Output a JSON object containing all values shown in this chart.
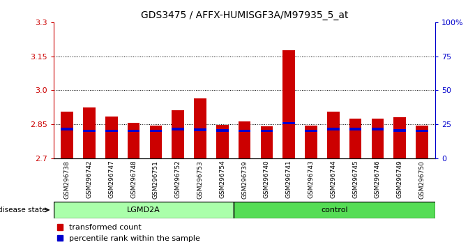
{
  "title": "GDS3475 / AFFX-HUMISGF3A/M97935_5_at",
  "samples": [
    "GSM296738",
    "GSM296742",
    "GSM296747",
    "GSM296748",
    "GSM296751",
    "GSM296752",
    "GSM296753",
    "GSM296754",
    "GSM296739",
    "GSM296740",
    "GSM296741",
    "GSM296743",
    "GSM296744",
    "GSM296745",
    "GSM296746",
    "GSM296749",
    "GSM296750"
  ],
  "groups": [
    "LGMD2A",
    "LGMD2A",
    "LGMD2A",
    "LGMD2A",
    "LGMD2A",
    "LGMD2A",
    "LGMD2A",
    "LGMD2A",
    "control",
    "control",
    "control",
    "control",
    "control",
    "control",
    "control",
    "control",
    "control"
  ],
  "red_values": [
    2.905,
    2.925,
    2.885,
    2.855,
    2.843,
    2.91,
    2.965,
    2.848,
    2.862,
    2.84,
    3.175,
    2.843,
    2.905,
    2.875,
    2.875,
    2.88,
    2.843
  ],
  "blue_values": [
    2.828,
    2.82,
    2.82,
    2.82,
    2.82,
    2.828,
    2.825,
    2.822,
    2.82,
    2.82,
    2.854,
    2.82,
    2.828,
    2.828,
    2.828,
    2.822,
    2.82
  ],
  "y_min": 2.7,
  "y_max": 3.3,
  "y_ticks_red": [
    2.7,
    2.85,
    3.0,
    3.15,
    3.3
  ],
  "y_ticks_blue": [
    0,
    25,
    50,
    75,
    100
  ],
  "y_ticks_blue_labels": [
    "0",
    "25",
    "50",
    "75",
    "100%"
  ],
  "grid_lines": [
    2.85,
    3.0,
    3.15
  ],
  "bar_width": 0.55,
  "red_color": "#CC0000",
  "blue_color": "#0000CC",
  "lgmd2a_color": "#AAFFAA",
  "control_color": "#55DD55",
  "xtick_bg_color": "#CCCCCC",
  "legend_items": [
    "transformed count",
    "percentile rank within the sample"
  ],
  "disease_label": "disease state",
  "lgmd2a_label": "LGMD2A",
  "control_label": "control",
  "blue_bar_height": 0.01,
  "lgmd2a_count": 8,
  "control_count": 9
}
